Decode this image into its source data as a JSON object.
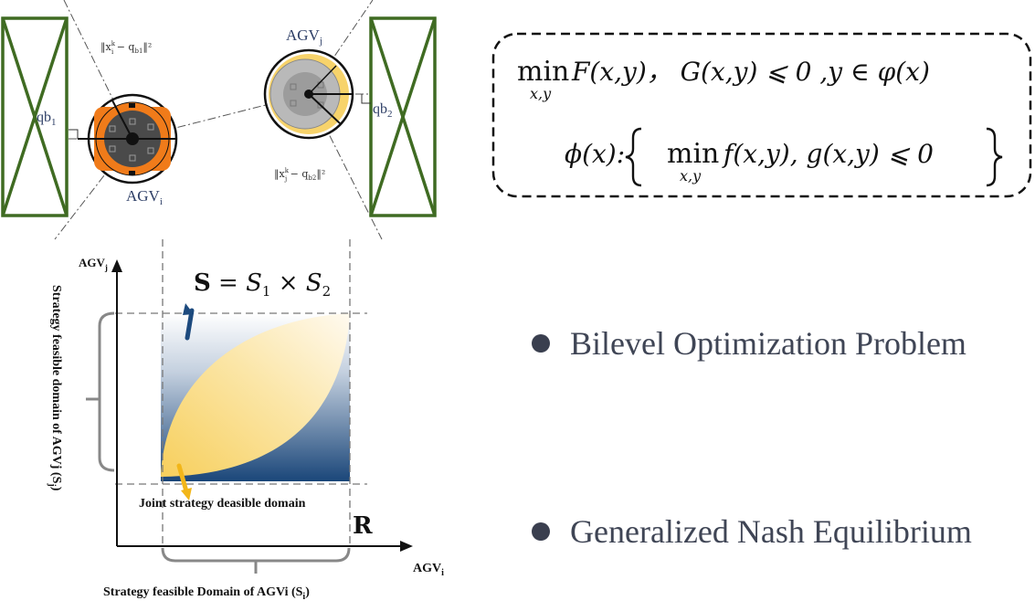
{
  "top_diagram": {
    "label_qb1": "qb",
    "label_qb1_sub": "1",
    "label_qb2": "qb",
    "label_qb2_sub": "2",
    "label_agv_i": "AGV",
    "label_agv_i_sub": "i",
    "label_agv_j": "AGV",
    "label_agv_j_sub": "j",
    "norm_i": "‖x",
    "norm_i_tail": " − q",
    "norm_i_sub": "b1",
    "norm_i_end": "‖²",
    "norm_j": "‖x",
    "norm_j_tail": " − q",
    "norm_j_sub": "b2",
    "norm_j_end": "‖²",
    "norm_sup": "k",
    "norm_sub_i": "i",
    "norm_sub_j": "j"
  },
  "formula": {
    "line1_min": "min",
    "line1_min_sub": "x,y",
    "line1_rest": "F(x,y)， G(x,y) ⩽ 0 ,y ∈ φ(x)",
    "line2_lhs": "ϕ(x):",
    "line2_min": "min",
    "line2_min_sub": "x,y",
    "line2_rest": "f(x,y), g(x,y) ⩽ 0"
  },
  "strategy_plot": {
    "y_axis_top": "AGV",
    "y_axis_top_sub": "j",
    "x_axis_right": "AGV",
    "x_axis_right_sub": "i",
    "set_label_bold": "S",
    "set_label_rest": " = S",
    "set_sub1": "1",
    "set_times": " × S",
    "set_sub2": "2",
    "joint_label": "Joint strategy deasible domain",
    "r_label": "R",
    "x_domain_label": "Strategy feasible Domain of AGVi (S",
    "x_domain_sub": "i",
    "x_domain_end": ")",
    "y_domain_label": "Strategy feasible domain of AGVj (S",
    "y_domain_sub": "j",
    "y_domain_end": ")"
  },
  "bullets": [
    {
      "text": "Bilevel Optimization Problem"
    },
    {
      "text": "Generalized Nash Equilibrium"
    }
  ],
  "colors": {
    "shelf_green": "#3f6b22",
    "agv_orange": "#f07b1a",
    "agv_yellow": "#f7d36b",
    "domain_blue": "#1d4a7e",
    "domain_yellow": "#fbe39a",
    "bullet_dot": "#3a3f4f"
  }
}
